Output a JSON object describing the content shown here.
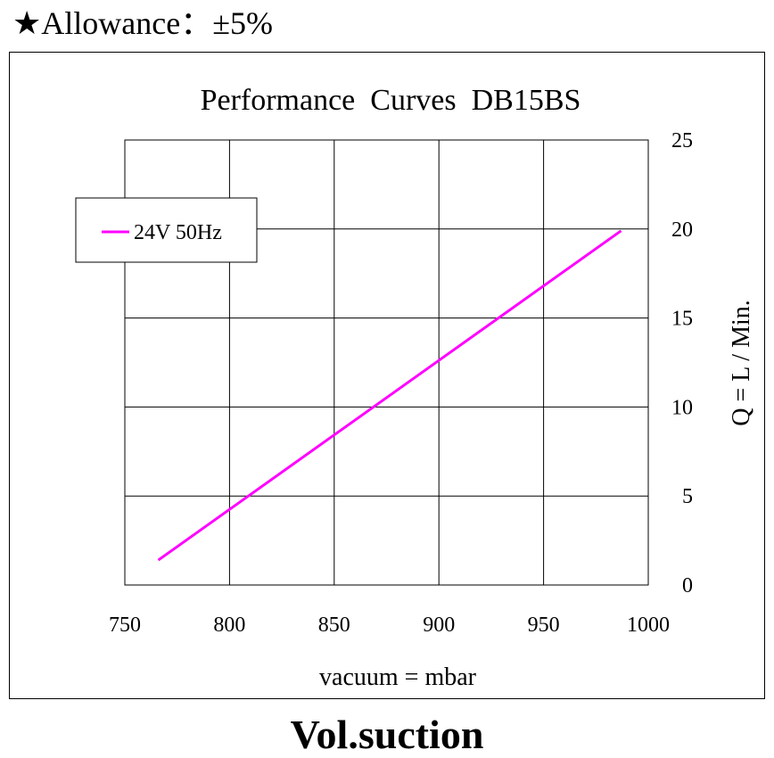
{
  "header": {
    "allowance": "★Allowance：±5%"
  },
  "footer": {
    "title": "Vol.suction"
  },
  "colors": {
    "series": "#ff00ff",
    "grid": "#000000"
  },
  "chart_data": {
    "type": "line",
    "title": "Performance  Curves  DB15BS",
    "xlabel": "vacuum = mbar",
    "ylabel": "Q = L / Min.",
    "xlim": [
      750,
      1000
    ],
    "ylim": [
      0,
      25
    ],
    "xticks": [
      750,
      800,
      850,
      900,
      950,
      1000
    ],
    "yticks": [
      0,
      5,
      10,
      15,
      20,
      25
    ],
    "y_axis_side": "right",
    "grid": true,
    "legend": "top-left",
    "series": [
      {
        "name": "24V 50Hz",
        "color": "#ff00ff",
        "x": [
          766,
          987
        ],
        "y": [
          1.4,
          19.9
        ]
      }
    ]
  }
}
